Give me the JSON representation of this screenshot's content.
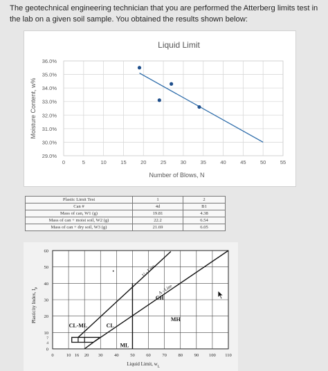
{
  "question": {
    "text": "The geotechnical engineering technician that you are performed the Atterberg limits test in the lab on a given soil sample. You obtained the results shown below:"
  },
  "chart_data": [
    {
      "type": "scatter",
      "title": "Liquid Limit",
      "xlabel": "Number of Blows, N",
      "ylabel": "Moisture Content, w%",
      "xlim": [
        0,
        55
      ],
      "ylim": [
        29.0,
        36.0
      ],
      "xticks": [
        "0",
        "5",
        "10",
        "15",
        "20",
        "25",
        "30",
        "35",
        "40",
        "45",
        "50",
        "55"
      ],
      "yticks": [
        "36.0%",
        "35.0%",
        "34.0%",
        "33.0%",
        "32.0%",
        "31.0%",
        "30.0%",
        "29.0%"
      ],
      "points": [
        {
          "x": 19,
          "y": 35.5
        },
        {
          "x": 24,
          "y": 33.1
        },
        {
          "x": 27,
          "y": 34.3
        },
        {
          "x": 34,
          "y": 32.6
        }
      ],
      "trendline": [
        {
          "x": 19,
          "y": 35.1
        },
        {
          "x": 50,
          "y": 30.0
        }
      ],
      "grid": true
    },
    {
      "type": "line",
      "title": "",
      "xlabel": "Liquid Limit, w",
      "xlabel_sub": "L",
      "ylabel": "Plasticity Index, I",
      "ylabel_sub": "P",
      "xlim": [
        0,
        110
      ],
      "ylim": [
        0,
        60
      ],
      "xticks": [
        "0",
        "10",
        "16",
        "20",
        "30",
        "40",
        "50",
        "60",
        "70",
        "80",
        "90",
        "100",
        "110"
      ],
      "yticks": [
        "60",
        "50",
        "40",
        "30",
        "20",
        "10",
        "7",
        "4",
        "0"
      ],
      "u_line": {
        "label": "U - Line",
        "points": [
          {
            "x": 16,
            "y": 7
          },
          {
            "x": 80,
            "y": 64.8
          }
        ]
      },
      "a_line": {
        "label": "A - Line",
        "points": [
          {
            "x": 20,
            "y": 0
          },
          {
            "x": 25.5,
            "y": 4
          },
          {
            "x": 110,
            "y": 65.6
          }
        ]
      },
      "zones": [
        {
          "label": "CL-ML",
          "x": 16,
          "y": 13
        },
        {
          "label": "CL",
          "x": 36,
          "y": 13
        },
        {
          "label": "CH",
          "x": 67,
          "y": 30
        },
        {
          "label": "MH",
          "x": 77,
          "y": 17
        },
        {
          "label": "ML",
          "x": 45,
          "y": 1
        }
      ]
    }
  ],
  "plastic_limit_table": {
    "header": [
      "Plastic Limit Test",
      "1",
      "2"
    ],
    "rows": [
      [
        "Can #",
        "4d",
        "B1"
      ],
      [
        "Mass of can, W1 (g)",
        "19.81",
        "4.38"
      ],
      [
        "Mass of can + moist soil, W2 (g)",
        "22.2",
        "6.54"
      ],
      [
        "Mass of can + dry soil, W3 (g)",
        "21.69",
        "6.05"
      ]
    ]
  }
}
